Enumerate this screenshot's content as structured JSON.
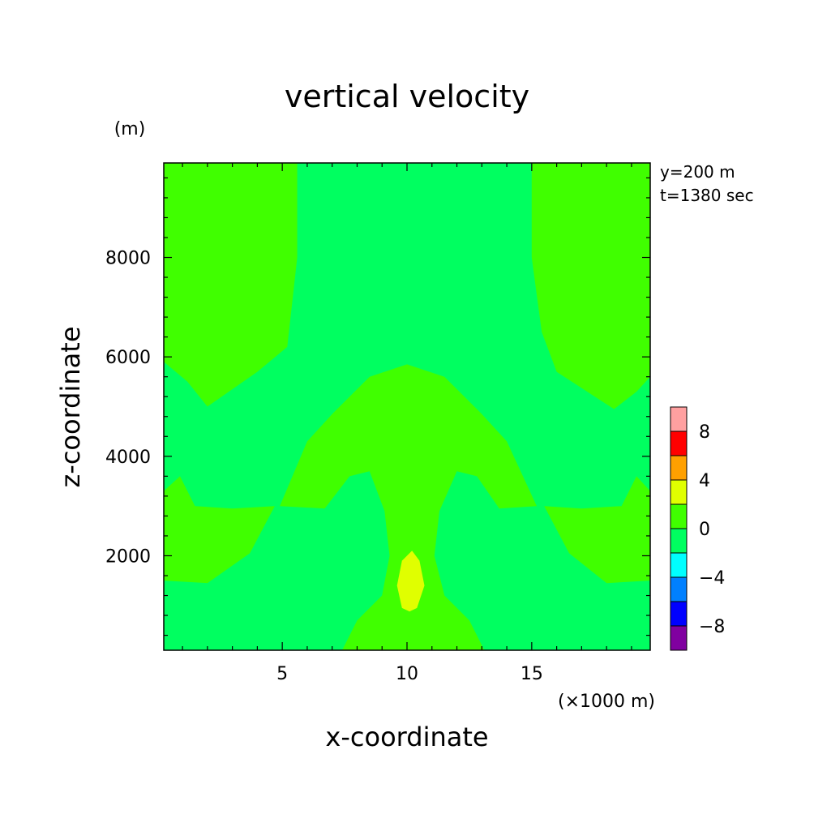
{
  "chart_data": {
    "type": "heatmap",
    "title": "vertical velocity",
    "xlabel": "x-coordinate",
    "ylabel": "z-coordinate",
    "x_units": "(×1000 m)",
    "y_units": "(m)",
    "annotations": [
      "y=200 m",
      "t=1380 sec"
    ],
    "xlim": [
      0.25,
      19.75
    ],
    "ylim": [
      100,
      9900
    ],
    "x_ticks": [
      5,
      10,
      15
    ],
    "x_tick_labels": [
      "5",
      "10",
      "15"
    ],
    "y_ticks": [
      2000,
      4000,
      6000,
      8000
    ],
    "y_tick_labels": [
      "2000",
      "4000",
      "6000",
      "8000"
    ],
    "colorbar": {
      "levels": [
        -10,
        -8,
        -6,
        -4,
        -2,
        0,
        2,
        4,
        6,
        8,
        10
      ],
      "colors": [
        "#8000a0",
        "#0000ff",
        "#0080ff",
        "#00ffff",
        "#00ff60",
        "#40ff00",
        "#e0ff00",
        "#ffa000",
        "#ff0000",
        "#ffa0a0"
      ],
      "labeled_values": [
        -8,
        -4,
        0,
        4,
        8
      ],
      "labels": [
        "−8",
        "−4",
        "0",
        "4",
        "8"
      ]
    },
    "background_level_range": [
      -2,
      0
    ],
    "regions": [
      {
        "level_range": [
          0,
          2
        ],
        "location": "upper-left",
        "boundary": [
          [
            0.25,
            9900
          ],
          [
            5.6,
            9900
          ],
          [
            5.6,
            8000
          ],
          [
            5.2,
            6200
          ],
          [
            4,
            5700
          ],
          [
            2,
            5000
          ],
          [
            1.2,
            5500
          ],
          [
            0.25,
            5900
          ]
        ]
      },
      {
        "level_range": [
          0,
          2
        ],
        "location": "upper-right",
        "boundary": [
          [
            15,
            9900
          ],
          [
            19.75,
            9900
          ],
          [
            19.75,
            5600
          ],
          [
            19.2,
            5300
          ],
          [
            18.3,
            4950
          ],
          [
            16,
            5700
          ],
          [
            15.4,
            6500
          ],
          [
            15,
            8000
          ]
        ]
      },
      {
        "level_range": [
          0,
          2
        ],
        "location": "center-mushroom",
        "boundary": [
          [
            4.9,
            3000
          ],
          [
            6,
            4300
          ],
          [
            7,
            4850
          ],
          [
            8.5,
            5600
          ],
          [
            10,
            5850
          ],
          [
            11.5,
            5600
          ],
          [
            13,
            4850
          ],
          [
            14,
            4300
          ],
          [
            15.2,
            3000
          ],
          [
            13.7,
            2950
          ],
          [
            12.8,
            3600
          ],
          [
            12,
            3700
          ],
          [
            11.3,
            2900
          ],
          [
            11.1,
            2000
          ],
          [
            11.5,
            1200
          ],
          [
            12.5,
            700
          ],
          [
            13.1,
            100
          ],
          [
            7.4,
            100
          ],
          [
            8,
            700
          ],
          [
            9,
            1200
          ],
          [
            9.3,
            2000
          ],
          [
            9.1,
            2900
          ],
          [
            8.5,
            3700
          ],
          [
            7.7,
            3600
          ],
          [
            6.7,
            2950
          ]
        ]
      },
      {
        "level_range": [
          0,
          2
        ],
        "location": "lower-left",
        "boundary": [
          [
            0.25,
            3300
          ],
          [
            0.9,
            3600
          ],
          [
            1.5,
            3000
          ],
          [
            3,
            2950
          ],
          [
            4.7,
            3000
          ],
          [
            3.7,
            2050
          ],
          [
            2,
            1450
          ],
          [
            0.25,
            1500
          ]
        ]
      },
      {
        "level_range": [
          0,
          2
        ],
        "location": "lower-right",
        "boundary": [
          [
            19.75,
            3300
          ],
          [
            19.2,
            3600
          ],
          [
            18.6,
            3000
          ],
          [
            17,
            2950
          ],
          [
            15.5,
            3000
          ],
          [
            16.5,
            2050
          ],
          [
            18,
            1450
          ],
          [
            19.75,
            1500
          ]
        ]
      },
      {
        "level_range": [
          2,
          4
        ],
        "location": "lower-center-core",
        "boundary": [
          [
            10.2,
            2100
          ],
          [
            10.5,
            1900
          ],
          [
            10.7,
            1400
          ],
          [
            10.4,
            950
          ],
          [
            10.1,
            880
          ],
          [
            9.8,
            950
          ],
          [
            9.6,
            1400
          ],
          [
            9.8,
            1900
          ]
        ]
      }
    ]
  }
}
